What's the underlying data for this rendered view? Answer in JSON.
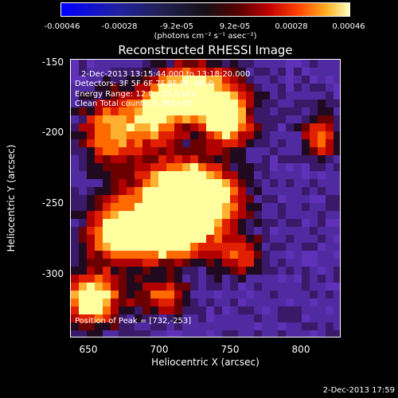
{
  "colorbar": {
    "ticks": [
      "-0.00046",
      "-0.00028",
      "-9.2e-05",
      "9.2e-05",
      "0.00028",
      "0.00046"
    ],
    "unit": "(photons cm⁻² s⁻¹ asec⁻²)"
  },
  "title": "Reconstructed RHESSI Image",
  "annotations": {
    "time": "2-Dec-2013 13:15:44.000 to 13:18:20.000",
    "detectors": "Detectors: 3F 5F 6F 7F 8F 9F, Att 0",
    "energy": "Energy Range: 12.0 - 25.0 keV",
    "method": "Clean     Total counts: 5.36E+03",
    "peak": "Position of Peak = [732,-253]"
  },
  "axes": {
    "xlabel": "Heliocentric X (arcsec)",
    "ylabel": "Heliocentric Y (arcsec)",
    "xticks": [
      "650",
      "700",
      "750",
      "800"
    ],
    "yticks": [
      "-150",
      "-200",
      "-250",
      "-300"
    ]
  },
  "footer": "2-Dec-2013 17:59"
}
